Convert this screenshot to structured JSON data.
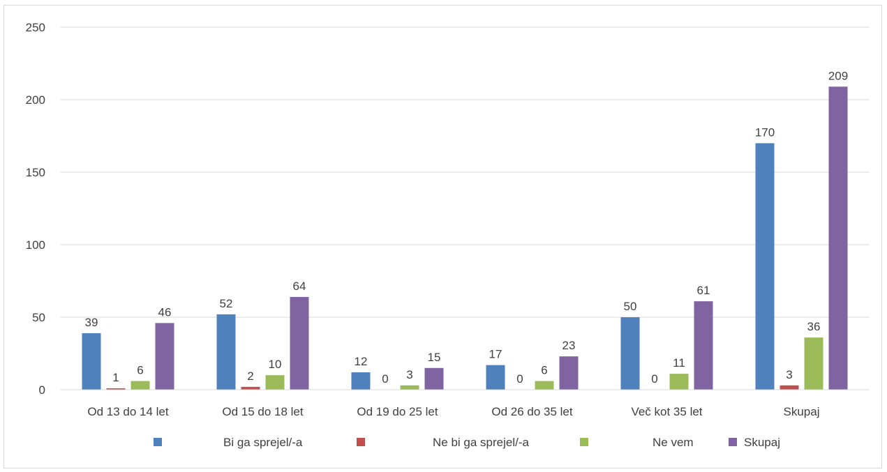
{
  "chart_data": {
    "type": "bar",
    "categories": [
      "Od 13 do 14 let",
      "Od 15 do 18 let",
      "Od 19 do 25 let",
      "Od 26 do 35 let",
      "Več kot 35 let",
      "Skupaj"
    ],
    "series": [
      {
        "name": "Bi ga sprejel/-a",
        "color": "#4f81bd",
        "values": [
          39,
          52,
          12,
          17,
          50,
          170
        ]
      },
      {
        "name": "Ne bi ga sprejel/-a",
        "color": "#c0504d",
        "values": [
          1,
          2,
          0,
          0,
          0,
          3
        ]
      },
      {
        "name": "Ne vem",
        "color": "#9bbb59",
        "values": [
          6,
          10,
          3,
          6,
          11,
          36
        ]
      },
      {
        "name": "Skupaj",
        "color": "#8064a2",
        "values": [
          46,
          64,
          15,
          23,
          61,
          209
        ]
      }
    ],
    "ylim": [
      0,
      250
    ],
    "yticks": [
      0,
      50,
      100,
      150,
      200,
      250
    ],
    "grid": true,
    "legend_position": "bottom",
    "data_labels": true,
    "title": "",
    "xlabel": "",
    "ylabel": ""
  }
}
